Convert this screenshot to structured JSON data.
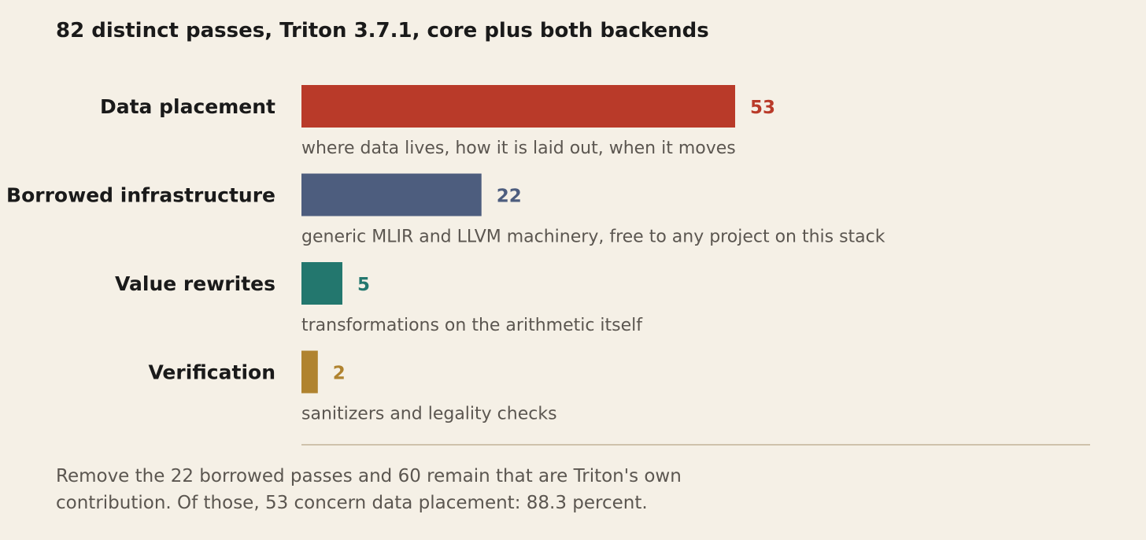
{
  "chart_data": {
    "type": "bar",
    "orientation": "horizontal",
    "title": "82 distinct passes, Triton 3.7.1, core plus both backends",
    "categories": [
      "Data placement",
      "Borrowed infrastructure",
      "Value rewrites",
      "Verification"
    ],
    "values": [
      53,
      22,
      5,
      2
    ],
    "descriptions": [
      "where data lives, how it is laid out, when it moves",
      "generic MLIR and LLVM machinery, free to any project on this stack",
      "transformations on the arithmetic itself",
      "sanitizers and legality checks"
    ],
    "colors": [
      "#b93a29",
      "#4d5d7e",
      "#23776e",
      "#b0832f"
    ],
    "xlim": [
      0,
      53
    ],
    "grid": false,
    "legend": "none"
  },
  "footnote": {
    "line1": "Remove the 22 borrowed passes and 60 remain that are Triton's own",
    "line2": "contribution. Of those, 53 concern data placement: 88.3 percent."
  }
}
